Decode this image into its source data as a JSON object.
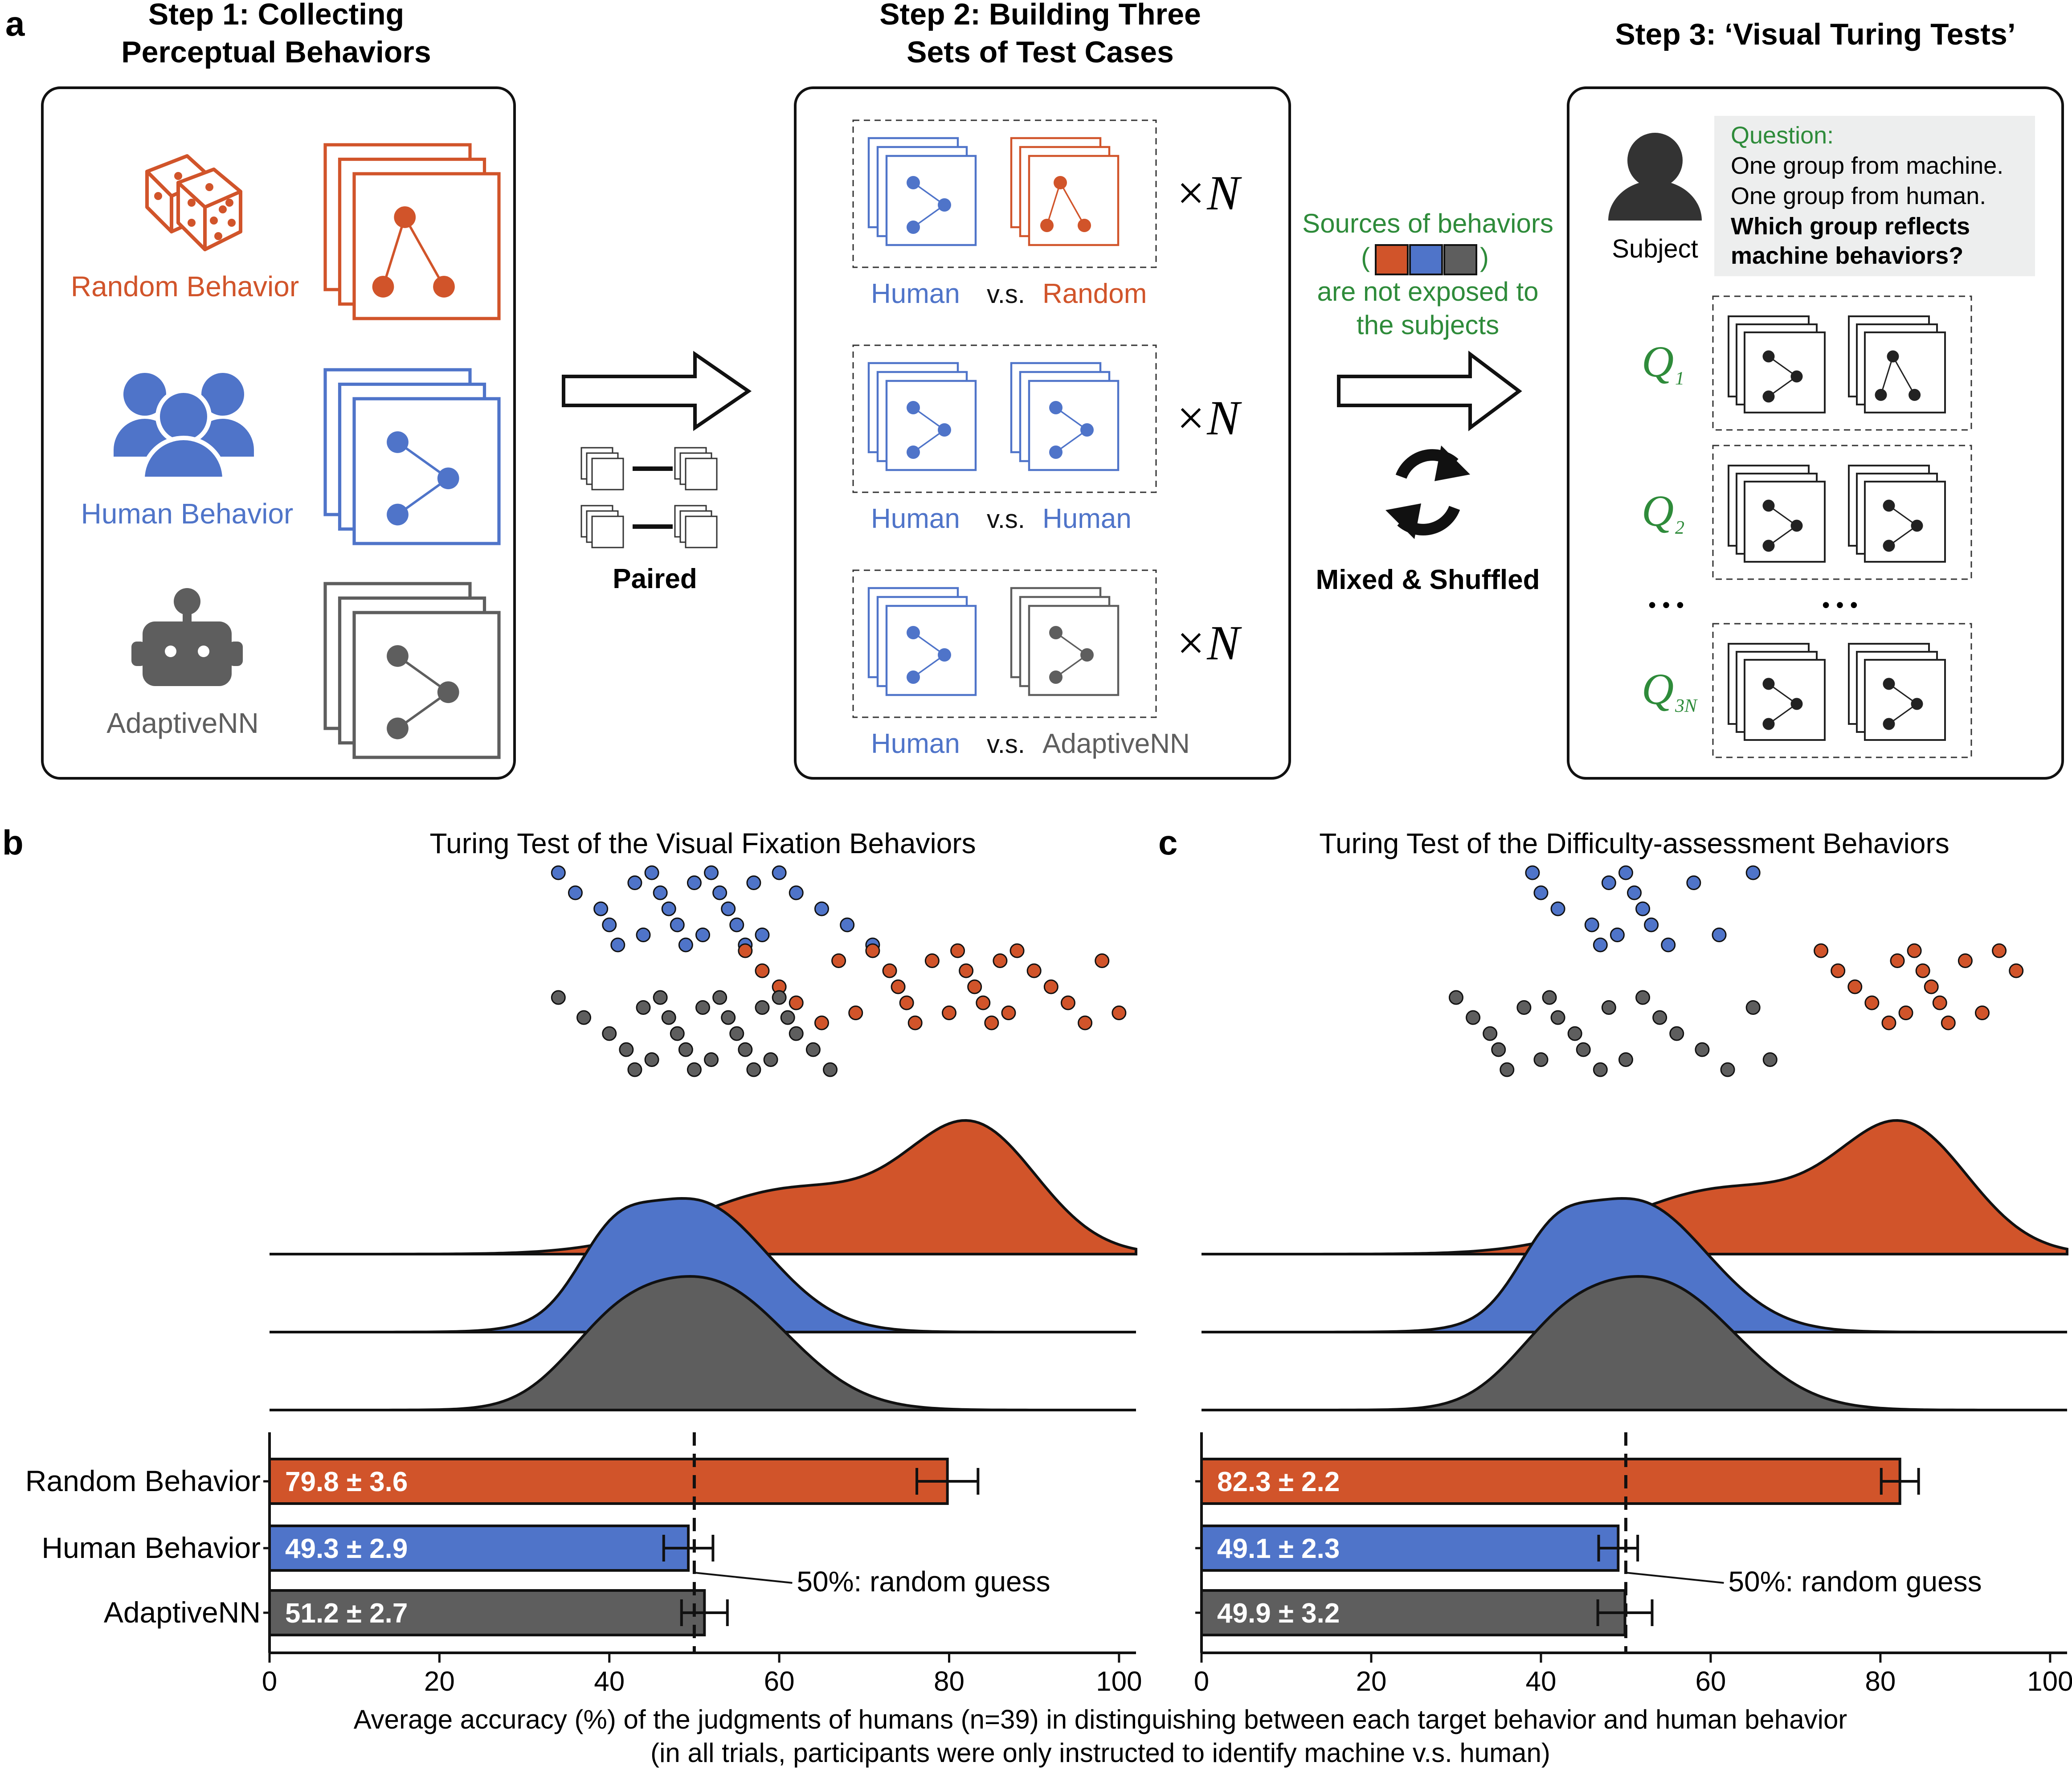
{
  "colors": {
    "random": "#D1542A",
    "human": "#4F74C9",
    "adaptive": "#5E5E5E",
    "green": "#2E8B3A",
    "dark": "#111111",
    "panelFill": "#EDEEEE"
  },
  "panel_a": {
    "label": "a",
    "step1": {
      "title_line1": "Step 1: Collecting",
      "title_line2": "Perceptual Behaviors",
      "random_label": "Random Behavior",
      "human_label": "Human Behavior",
      "adaptive_label": "AdaptiveNN",
      "icons": [
        "dice-icon",
        "people-icon",
        "robot-icon"
      ]
    },
    "paired_label": "Paired",
    "step2": {
      "title_line1": "Step 2: Building Three",
      "title_line2": "Sets of Test Cases",
      "times_n": "×N",
      "rows": [
        {
          "left": "Human",
          "vs": "v.s.",
          "right": "Random"
        },
        {
          "left": "Human",
          "vs": "v.s.",
          "right": "Human"
        },
        {
          "left": "Human",
          "vs": "v.s.",
          "right": "AdaptiveNN"
        }
      ]
    },
    "sources": {
      "line1": "Sources of behaviors",
      "open": "(",
      "close": ")",
      "line3": "are not exposed to",
      "line4": "the subjects"
    },
    "mixed_label": "Mixed & Shuffled",
    "step3": {
      "title": "Step 3: ‘Visual Turing Tests’",
      "subject_label": "Subject",
      "question_label": "Question:",
      "q_line1": "One group from machine.",
      "q_line2": "One group from human.",
      "q_bold1": "Which group reflects",
      "q_bold2": "machine behaviors?",
      "dots": "• • •",
      "questions": [
        {
          "q": "Q",
          "sub": "1"
        },
        {
          "q": "Q",
          "sub": "2"
        },
        {
          "q": "Q",
          "sub": "3N"
        }
      ]
    }
  },
  "chart_data": [
    {
      "panel": "b",
      "title": "Turing Test of the Visual Fixation Behaviors",
      "type": "bar",
      "categories": [
        "Random Behavior",
        "Human Behavior",
        "AdaptiveNN"
      ],
      "values": [
        79.8,
        49.3,
        51.2
      ],
      "errors": [
        3.6,
        2.9,
        2.7
      ],
      "bar_labels": [
        "79.8 ± 3.6",
        "49.3 ± 2.9",
        "51.2 ± 2.7"
      ],
      "xlim": [
        0,
        102
      ],
      "xticks": [
        "0",
        "20",
        "40",
        "60",
        "80",
        "100"
      ],
      "reference_line": 50,
      "reference_label": "50%: random guess",
      "density_peaks": {
        "random": 83,
        "human": 50,
        "adaptive": 52
      },
      "scatter": {
        "human": [
          34,
          36,
          39,
          40,
          41,
          43,
          44,
          45,
          46,
          47,
          48,
          49,
          50,
          51,
          52,
          53,
          54,
          55,
          56,
          57,
          58,
          60,
          62,
          65,
          68,
          71
        ],
        "random": [
          56,
          58,
          60,
          62,
          65,
          67,
          69,
          71,
          73,
          74,
          75,
          76,
          78,
          80,
          81,
          82,
          83,
          84,
          85,
          86,
          87,
          88,
          90,
          92,
          94,
          96,
          98,
          100
        ],
        "adaptive": [
          34,
          37,
          40,
          42,
          43,
          44,
          45,
          46,
          47,
          48,
          49,
          50,
          51,
          52,
          53,
          54,
          55,
          56,
          57,
          58,
          59,
          60,
          61,
          62,
          64,
          66
        ]
      }
    },
    {
      "panel": "c",
      "title": "Turing Test of the Difficulty-assessment Behaviors",
      "type": "bar",
      "categories": [
        "Random Behavior",
        "Human Behavior",
        "AdaptiveNN"
      ],
      "values": [
        82.3,
        49.1,
        49.9
      ],
      "errors": [
        2.2,
        2.3,
        3.2
      ],
      "bar_labels": [
        "82.3 ± 2.2",
        "49.1 ± 2.3",
        "49.9 ± 3.2"
      ],
      "xlim": [
        0,
        102
      ],
      "xticks": [
        "0",
        "20",
        "40",
        "60",
        "80",
        "100"
      ],
      "reference_line": 50,
      "reference_label": "50%: random guess",
      "density_peaks": {
        "random": 83,
        "human": 51,
        "adaptive": 54
      },
      "scatter": {
        "human": [
          39,
          40,
          42,
          46,
          47,
          48,
          49,
          50,
          51,
          52,
          53,
          55,
          58,
          61,
          65
        ],
        "random": [
          73,
          75,
          77,
          79,
          81,
          82,
          83,
          84,
          85,
          86,
          87,
          88,
          90,
          92,
          94,
          96
        ],
        "adaptive": [
          30,
          32,
          34,
          35,
          36,
          38,
          40,
          41,
          42,
          44,
          45,
          47,
          48,
          50,
          52,
          54,
          56,
          59,
          62,
          65,
          67
        ]
      }
    }
  ],
  "caption": {
    "line1": "Average accuracy (%) of the judgments of humans (n=39) in distinguishing between each target behavior and human behavior",
    "line2": "(in all trials, participants were only instructed to identify machine v.s. human)"
  }
}
